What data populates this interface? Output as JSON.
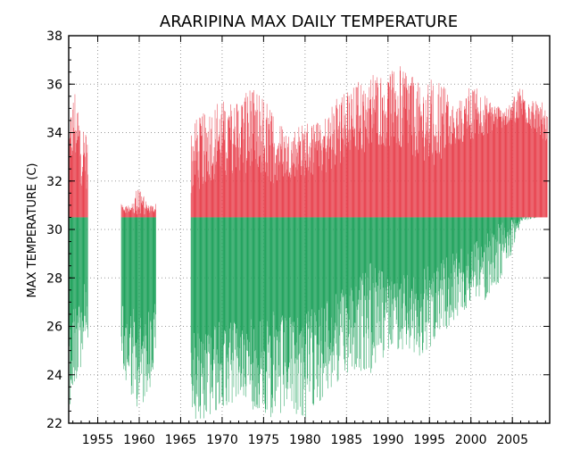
{
  "chart_data": {
    "type": "bar",
    "title": "ARARIPINA MAX DAILY TEMPERATURE",
    "xlabel": "",
    "ylabel": "MAX TEMPERATURE (C)",
    "baseline": 30.5,
    "xlim": [
      1951.5,
      2009.5
    ],
    "ylim": [
      22,
      38
    ],
    "xticks": [
      1955,
      1960,
      1965,
      1970,
      1975,
      1980,
      1985,
      1990,
      1995,
      2000,
      2005
    ],
    "yticks": [
      22,
      24,
      26,
      28,
      30,
      32,
      34,
      36,
      38
    ],
    "grid": true,
    "colors": {
      "above_baseline": "#e8434f",
      "below_baseline": "#1fa25c"
    },
    "envelope": {
      "x": [
        1951.6,
        1952.2,
        1952.8,
        1953.6,
        1958.0,
        1959.0,
        1960.0,
        1961.0,
        1961.9,
        1966.3,
        1968.0,
        1970.0,
        1972.0,
        1974.0,
        1976.0,
        1978.0,
        1980.0,
        1982.0,
        1984.0,
        1986.0,
        1988.0,
        1990.0,
        1992.0,
        1994.0,
        1996.0,
        1998.0,
        2000.0,
        2002.0,
        2004.0,
        2006.0,
        2008.0,
        2009.2
      ],
      "max": [
        34.5,
        36.0,
        35.0,
        34.0,
        31.0,
        31.0,
        32.0,
        31.0,
        31.0,
        34.5,
        35.0,
        35.3,
        35.5,
        36.0,
        35.0,
        34.0,
        34.5,
        34.5,
        35.5,
        36.0,
        36.5,
        36.5,
        37.0,
        36.0,
        36.5,
        35.0,
        36.0,
        35.5,
        35.0,
        36.0,
        35.5,
        35.0
      ],
      "min": [
        22.5,
        23.5,
        24.0,
        25.0,
        24.0,
        23.0,
        22.5,
        23.0,
        24.0,
        22.0,
        22.0,
        22.5,
        23.0,
        22.5,
        22.0,
        22.5,
        22.0,
        23.0,
        23.5,
        24.0,
        24.0,
        25.0,
        25.0,
        24.5,
        25.5,
        26.0,
        27.0,
        27.0,
        28.0,
        30.3,
        30.5,
        30.5
      ],
      "upper": [
        33.0,
        34.0,
        33.0,
        32.5,
        30.8,
        30.8,
        31.0,
        30.8,
        30.8,
        32.5,
        33.0,
        33.3,
        33.5,
        33.5,
        33.0,
        32.8,
        33.0,
        33.0,
        33.5,
        34.0,
        34.5,
        34.5,
        34.5,
        34.0,
        34.0,
        34.0,
        34.5,
        34.5,
        34.5,
        35.0,
        34.5,
        34.0
      ],
      "lower": [
        25.0,
        26.0,
        26.0,
        27.0,
        26.0,
        25.5,
        25.0,
        25.5,
        26.0,
        24.5,
        24.5,
        25.0,
        25.0,
        25.0,
        25.0,
        25.0,
        25.0,
        25.5,
        26.0,
        26.5,
        27.0,
        27.0,
        27.0,
        27.0,
        27.5,
        28.0,
        28.5,
        29.0,
        29.5,
        30.5,
        30.5,
        30.5
      ]
    },
    "gaps": [
      [
        1953.8,
        1957.8
      ],
      [
        1962.0,
        1966.2
      ]
    ]
  }
}
